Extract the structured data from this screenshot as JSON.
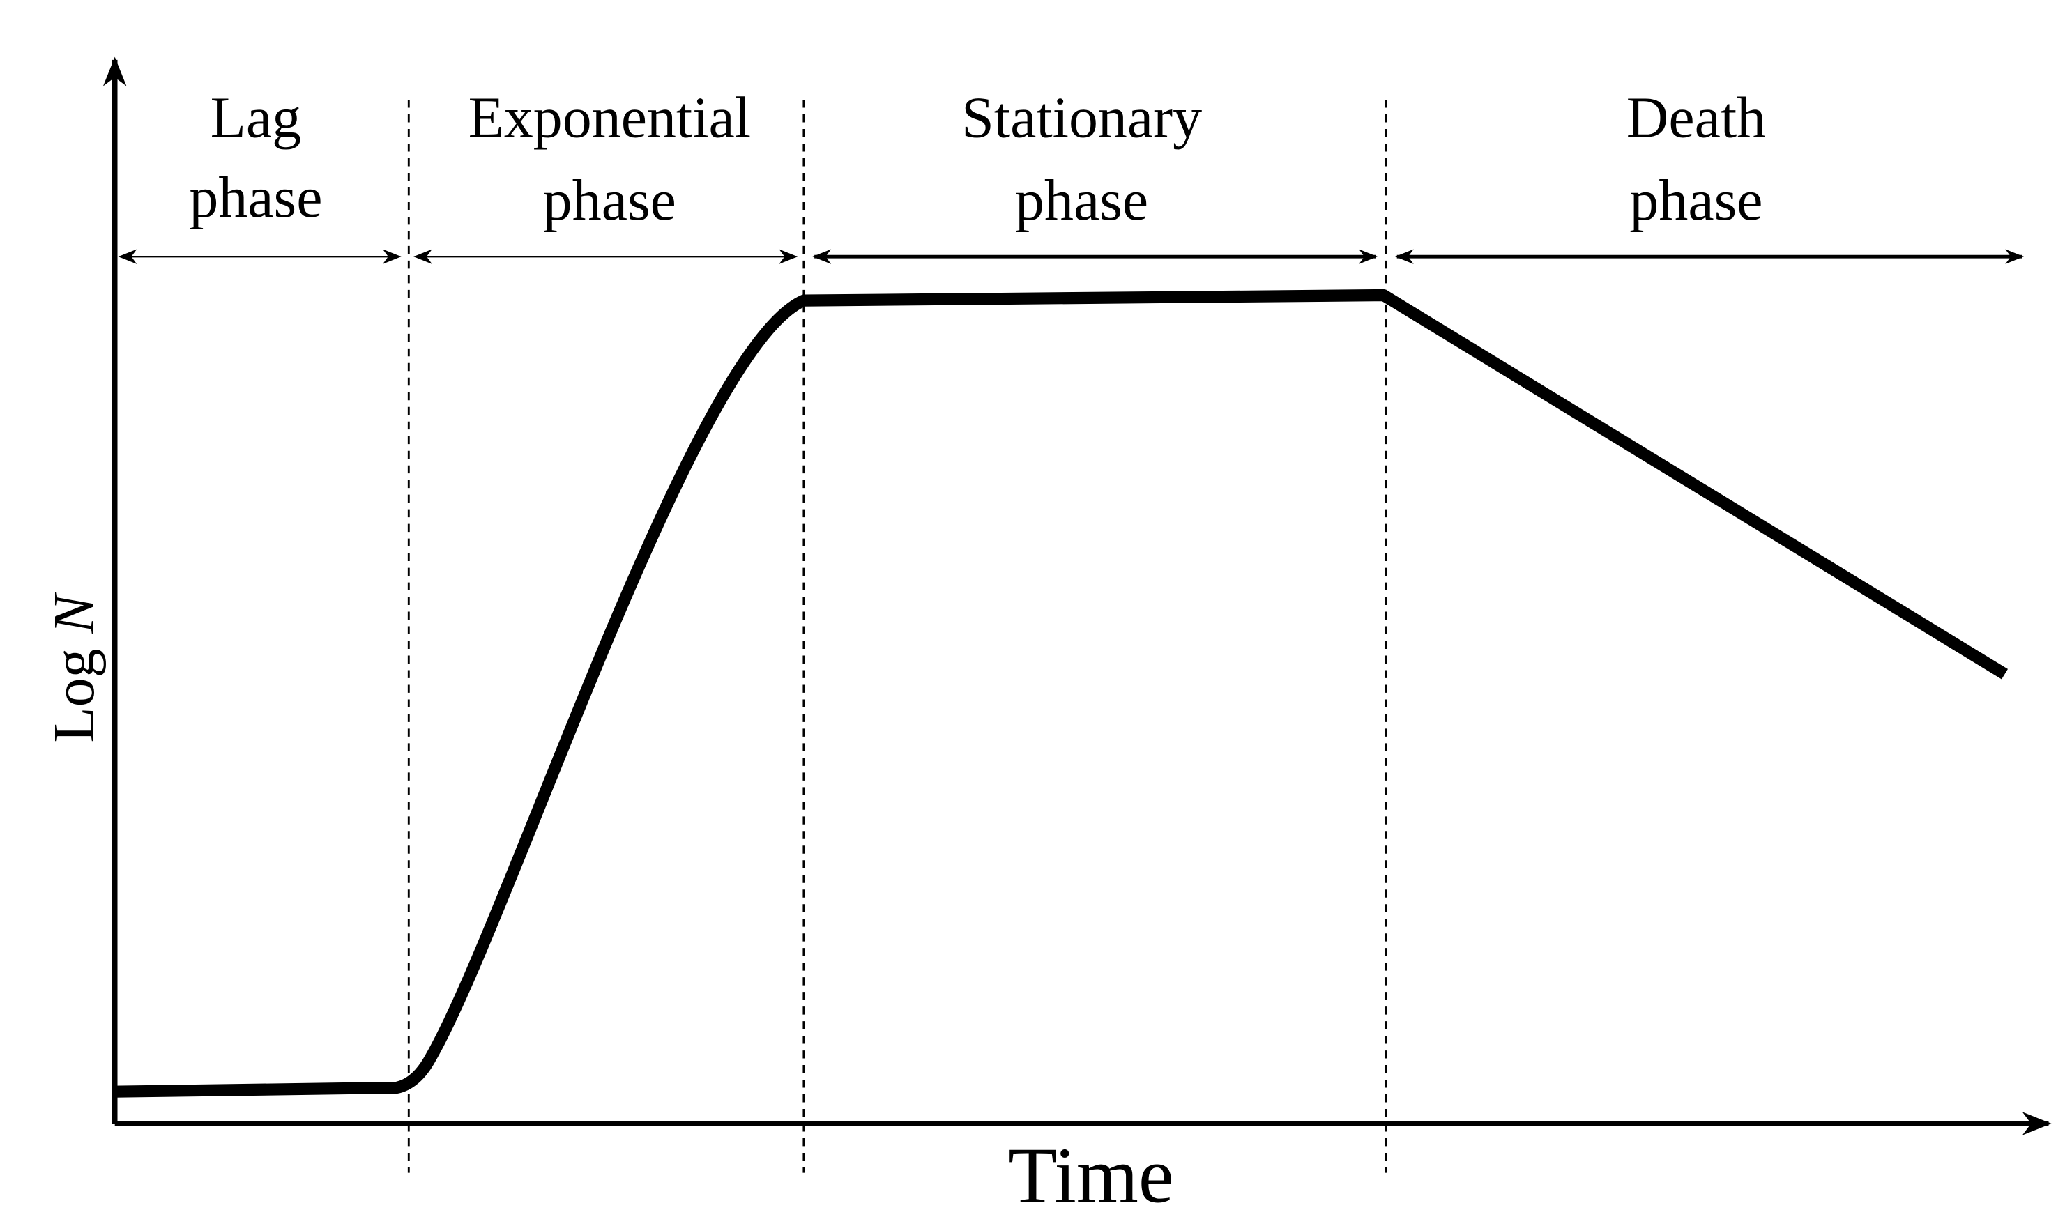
{
  "x_axis_label": "Time",
  "y_axis_label": {
    "text": "Log",
    "variable": "N"
  },
  "phases": [
    {
      "lines": [
        "Lag",
        "phase"
      ]
    },
    {
      "lines": [
        "Exponential",
        "phase"
      ]
    },
    {
      "lines": [
        "Stationary",
        "phase"
      ]
    },
    {
      "lines": [
        "Death",
        "phase"
      ]
    }
  ]
}
